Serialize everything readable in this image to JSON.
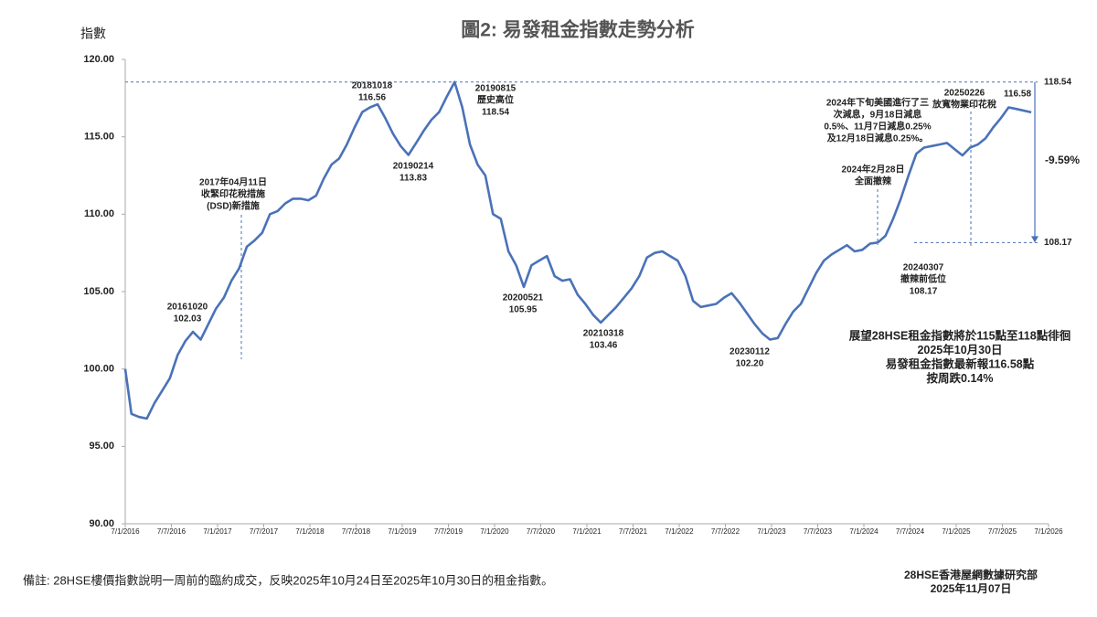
{
  "chart_data": {
    "type": "line",
    "title": "圖2: 易發租金指數走勢分析",
    "y_label": "指數",
    "color": "#4a72b8",
    "x": [
      "2016-01-07",
      "2016-02",
      "2016-03",
      "2016-04",
      "2016-05",
      "2016-06",
      "2016-07",
      "2016-08",
      "2016-09",
      "2016-10",
      "2016-11",
      "2016-12",
      "2017-01",
      "2017-02",
      "2017-03",
      "2017-04",
      "2017-05",
      "2017-06",
      "2017-07",
      "2017-08",
      "2017-09",
      "2017-10",
      "2017-11",
      "2017-12",
      "2018-01",
      "2018-02",
      "2018-03",
      "2018-04",
      "2018-05",
      "2018-06",
      "2018-07",
      "2018-08",
      "2018-09",
      "2018-10",
      "2018-11",
      "2018-12",
      "2019-01",
      "2019-02",
      "2019-03",
      "2019-04",
      "2019-05",
      "2019-06",
      "2019-07",
      "2019-08",
      "2019-09",
      "2019-10",
      "2019-11",
      "2019-12",
      "2020-01",
      "2020-02",
      "2020-03",
      "2020-04",
      "2020-05",
      "2020-06",
      "2020-07",
      "2020-08",
      "2020-09",
      "2020-10",
      "2020-11",
      "2020-12",
      "2021-01",
      "2021-02",
      "2021-03",
      "2021-04",
      "2021-05",
      "2021-06",
      "2021-07",
      "2021-08",
      "2021-09",
      "2021-10",
      "2021-11",
      "2021-12",
      "2022-01",
      "2022-02",
      "2022-03",
      "2022-04",
      "2022-05",
      "2022-06",
      "2022-07",
      "2022-08",
      "2022-09",
      "2022-10",
      "2022-11",
      "2022-12",
      "2023-01",
      "2023-02",
      "2023-03",
      "2023-04",
      "2023-05",
      "2023-06",
      "2023-07",
      "2023-08",
      "2023-09",
      "2023-10",
      "2023-11",
      "2023-12",
      "2024-01",
      "2024-02",
      "2024-03",
      "2024-04",
      "2024-05",
      "2024-06",
      "2024-07",
      "2024-08",
      "2024-09",
      "2024-10",
      "2024-11",
      "2024-12",
      "2025-01",
      "2025-02",
      "2025-03",
      "2025-04",
      "2025-05",
      "2025-06",
      "2025-07",
      "2025-08",
      "2025-09",
      "2025-10-30"
    ],
    "values": [
      100.0,
      97.1,
      96.9,
      96.8,
      97.8,
      98.6,
      99.4,
      100.9,
      101.8,
      102.4,
      101.9,
      102.9,
      103.9,
      104.6,
      105.7,
      106.5,
      107.9,
      108.3,
      108.8,
      110.0,
      110.2,
      110.7,
      111.0,
      111.0,
      110.9,
      111.2,
      112.3,
      113.2,
      113.6,
      114.5,
      115.6,
      116.6,
      116.9,
      117.1,
      116.2,
      115.2,
      114.4,
      113.83,
      114.6,
      115.4,
      116.1,
      116.6,
      117.6,
      118.54,
      116.9,
      114.5,
      113.2,
      112.5,
      110.0,
      109.7,
      107.6,
      106.7,
      105.3,
      106.7,
      107.0,
      107.3,
      106.0,
      105.7,
      105.8,
      104.8,
      104.2,
      103.5,
      103.0,
      103.5,
      104.0,
      104.6,
      105.2,
      106.0,
      107.2,
      107.5,
      107.6,
      107.3,
      107.0,
      106.0,
      104.4,
      104.0,
      104.1,
      104.2,
      104.6,
      104.9,
      104.3,
      103.6,
      102.9,
      102.3,
      101.9,
      102.0,
      102.9,
      103.7,
      104.2,
      105.2,
      106.2,
      107.0,
      107.4,
      107.7,
      108.0,
      107.6,
      107.7,
      108.1,
      108.17,
      108.6,
      109.7,
      111.0,
      112.5,
      113.9,
      114.3,
      114.4,
      114.5,
      114.6,
      114.2,
      113.8,
      114.3,
      114.5,
      114.9,
      115.6,
      116.2,
      116.9,
      116.8,
      116.58
    ],
    "xlim": [
      "2016-01-07",
      "2026-01-07"
    ],
    "xticks": [
      {
        "value": "2016-01-07",
        "label": "7/1/2016"
      },
      {
        "value": "2016-07-07",
        "label": "7/7/2016"
      },
      {
        "value": "2017-01-07",
        "label": "7/1/2017"
      },
      {
        "value": "2017-07-07",
        "label": "7/7/2017"
      },
      {
        "value": "2018-01-07",
        "label": "7/1/2018"
      },
      {
        "value": "2018-07-07",
        "label": "7/7/2018"
      },
      {
        "value": "2019-01-07",
        "label": "7/1/2019"
      },
      {
        "value": "2019-07-07",
        "label": "7/7/2019"
      },
      {
        "value": "2020-01-07",
        "label": "7/1/2020"
      },
      {
        "value": "2020-07-07",
        "label": "7/7/2020"
      },
      {
        "value": "2021-01-07",
        "label": "7/1/2021"
      },
      {
        "value": "2021-07-07",
        "label": "7/7/2021"
      },
      {
        "value": "2022-01-07",
        "label": "7/1/2022"
      },
      {
        "value": "2022-07-07",
        "label": "7/7/2022"
      },
      {
        "value": "2023-01-07",
        "label": "7/1/2023"
      },
      {
        "value": "2023-07-07",
        "label": "7/7/2023"
      },
      {
        "value": "2024-01-07",
        "label": "7/1/2024"
      },
      {
        "value": "2024-07-07",
        "label": "7/7/2024"
      },
      {
        "value": "2025-01-07",
        "label": "7/1/2025"
      },
      {
        "value": "2025-07-07",
        "label": "7/7/2025"
      },
      {
        "value": "2026-01-07",
        "label": "7/1/2026"
      }
    ],
    "ylim": [
      90,
      120
    ],
    "yticks": [
      {
        "value": 90,
        "label": "90.00"
      },
      {
        "value": 95,
        "label": "95.00"
      },
      {
        "value": 100,
        "label": "100.00"
      },
      {
        "value": 105,
        "label": "105.00"
      },
      {
        "value": 110,
        "label": "110.00"
      },
      {
        "value": 115,
        "label": "115.00"
      },
      {
        "value": 120,
        "label": "120.00"
      }
    ],
    "reference_lines": [
      {
        "value": 118.54,
        "label": "118.54"
      },
      {
        "value": 108.17,
        "label": "108.17"
      }
    ],
    "change_label": "-9.59%",
    "annotations": [
      {
        "lines": [
          "20161020",
          "102.03"
        ]
      },
      {
        "lines": [
          "2017年04月11日",
          "收緊印花稅措施",
          "(DSD)新措施"
        ]
      },
      {
        "lines": [
          "20181018",
          "116.56"
        ]
      },
      {
        "lines": [
          "20190214",
          "113.83"
        ]
      },
      {
        "lines": [
          "20190815",
          "歷史高位",
          "118.54"
        ]
      },
      {
        "lines": [
          "20200521",
          "105.95"
        ]
      },
      {
        "lines": [
          "20210318",
          "103.46"
        ]
      },
      {
        "lines": [
          "20230112",
          "102.20"
        ]
      },
      {
        "lines": [
          "2024年下旬美國進行了三",
          "次減息，9月18日減息",
          "0.5%、11月7日減息0.25%",
          "及12月18日減息0.25%。"
        ]
      },
      {
        "lines": [
          "2024年2月28日",
          "全面撤辣"
        ]
      },
      {
        "lines": [
          "20240307",
          "撤辣前低位",
          "108.17"
        ]
      },
      {
        "lines": [
          "20250226",
          "放寬物業印花稅"
        ]
      },
      {
        "lines": [
          "116.58"
        ]
      }
    ],
    "outlook": [
      "展望28HSE租金指數將於115點至118點徘徊",
      "2025年10月30日",
      "易發租金指數最新報116.58點",
      "按周跌0.14%"
    ]
  },
  "footer": {
    "note": "備註: 28HSE樓價指數說明一周前的臨約成交，反映2025年10月24日至2025年10月30日的租金指數。",
    "source": [
      "28HSE香港屋網數據研究部",
      "2025年11月07日"
    ]
  }
}
